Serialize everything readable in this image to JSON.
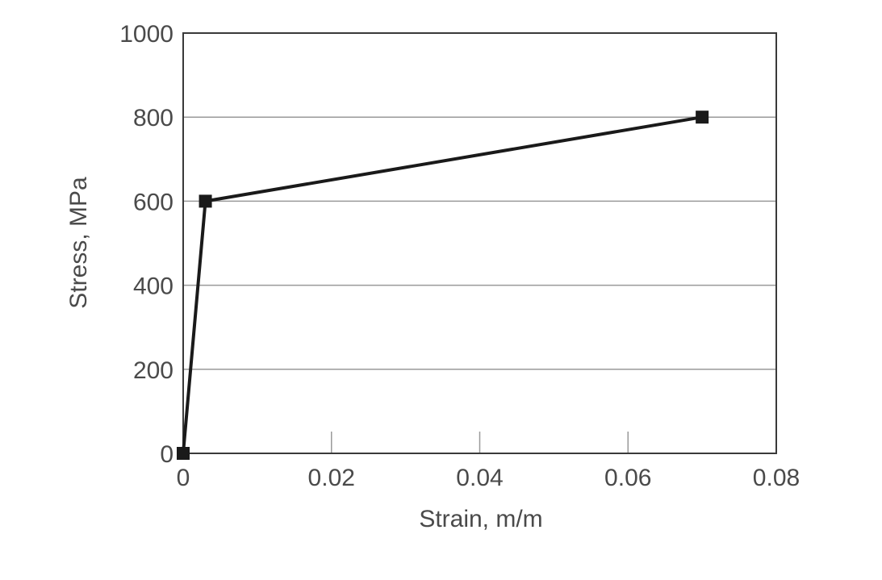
{
  "chart_data": {
    "type": "line",
    "title": "",
    "xlabel": "Strain, m/m",
    "ylabel": "Stress, MPa",
    "xlim": [
      0,
      0.08
    ],
    "ylim": [
      0,
      1000
    ],
    "xticks": [
      0,
      0.02,
      0.04,
      0.06,
      0.08
    ],
    "xtick_labels": [
      "0",
      "0.02",
      "0.04",
      "0.06",
      "0.08"
    ],
    "yticks": [
      0,
      200,
      400,
      600,
      800,
      1000
    ],
    "ytick_labels": [
      "0",
      "200",
      "400",
      "600",
      "800",
      "1000"
    ],
    "grid": "horizontal",
    "series": [
      {
        "x": [
          0,
          0.003,
          0.07
        ],
        "y": [
          0,
          600,
          800
        ],
        "marker": "square",
        "color": "#1a1a1a"
      }
    ],
    "colors": {
      "frame": "#3a3a3a",
      "grid": "#9a9a9a",
      "line": "#1a1a1a",
      "text": "#4a4a4a"
    }
  }
}
